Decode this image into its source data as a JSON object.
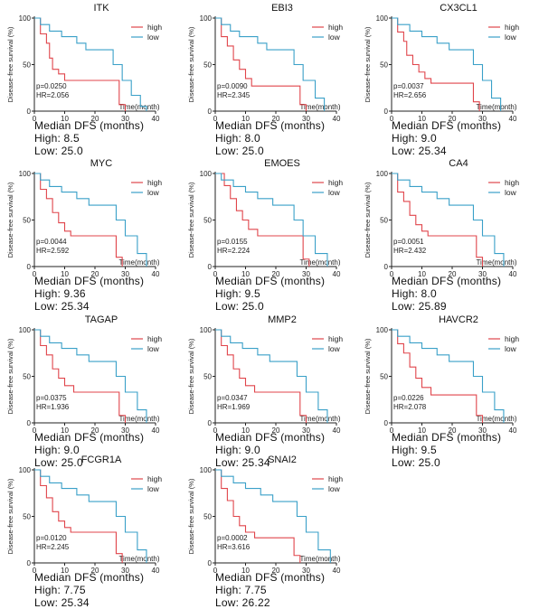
{
  "chart_data": [
    {
      "type": "line",
      "title": "ITK",
      "ylabel": "Disease-free survival (%)",
      "xlabel": "Time(month)",
      "xlim": [
        0,
        40
      ],
      "ylim": [
        0,
        100
      ],
      "x_ticks": [
        0,
        10,
        20,
        30,
        40
      ],
      "y_ticks": [
        0,
        50,
        100
      ],
      "legend_position": "top-right",
      "p_text": "p=0.0250",
      "hr_text": "HR=2.056",
      "series": [
        {
          "name": "high",
          "color": "#e0454b",
          "x": [
            0,
            2,
            4,
            5,
            6,
            8,
            10,
            12,
            26,
            28,
            30
          ],
          "y": [
            100,
            83,
            73,
            57,
            45,
            40,
            33,
            33,
            33,
            7,
            0
          ]
        },
        {
          "name": "low",
          "color": "#3aa0c8",
          "x": [
            0,
            2,
            5,
            9,
            14,
            17,
            24,
            26,
            29,
            32,
            35,
            37
          ],
          "y": [
            100,
            93,
            86,
            80,
            73,
            66,
            66,
            50,
            33,
            17,
            5,
            0
          ]
        }
      ],
      "median": {
        "heading": "Median DFS (months)",
        "high": "High: 8.5",
        "low": "Low: 25.0"
      }
    },
    {
      "type": "line",
      "title": "EBI3",
      "ylabel": "Disease-free survival (%)",
      "xlabel": "Time(month)",
      "xlim": [
        0,
        40
      ],
      "ylim": [
        0,
        100
      ],
      "x_ticks": [
        0,
        10,
        20,
        30,
        40
      ],
      "y_ticks": [
        0,
        50,
        100
      ],
      "legend_position": "top-right",
      "p_text": "p=0.0090",
      "hr_text": "HR=2.345",
      "series": [
        {
          "name": "high",
          "color": "#e0454b",
          "x": [
            0,
            2,
            4,
            6,
            8,
            10,
            12,
            26,
            28,
            30
          ],
          "y": [
            100,
            80,
            70,
            55,
            45,
            35,
            27,
            27,
            7,
            0
          ]
        },
        {
          "name": "low",
          "color": "#3aa0c8",
          "x": [
            0,
            2,
            5,
            8,
            14,
            17,
            24,
            26,
            29,
            33,
            36
          ],
          "y": [
            100,
            93,
            86,
            80,
            73,
            66,
            66,
            50,
            33,
            14,
            0
          ]
        }
      ],
      "median": {
        "heading": "Median DFS (months)",
        "high": "High: 8.0",
        "low": "Low: 25.0"
      }
    },
    {
      "type": "line",
      "title": "CX3CL1",
      "ylabel": "Disease-free survival (%)",
      "xlabel": "Time(month)",
      "xlim": [
        0,
        40
      ],
      "ylim": [
        0,
        100
      ],
      "x_ticks": [
        0,
        10,
        20,
        30,
        40
      ],
      "y_ticks": [
        0,
        50,
        100
      ],
      "legend_position": "top-right",
      "p_text": "p=0.0037",
      "hr_text": "HR=2.656",
      "series": [
        {
          "name": "high",
          "color": "#e0454b",
          "x": [
            0,
            2,
            4,
            5,
            7,
            9,
            11,
            13,
            25,
            27,
            29
          ],
          "y": [
            100,
            85,
            75,
            60,
            50,
            42,
            35,
            30,
            30,
            10,
            0
          ]
        },
        {
          "name": "low",
          "color": "#3aa0c8",
          "x": [
            0,
            2,
            6,
            10,
            15,
            19,
            24,
            27,
            30,
            33,
            36
          ],
          "y": [
            100,
            93,
            86,
            80,
            73,
            66,
            66,
            50,
            33,
            14,
            0
          ]
        }
      ],
      "median": {
        "heading": "Median DFS (months)",
        "high": "High: 9.0",
        "low": "Low: 25.34"
      }
    },
    {
      "type": "line",
      "title": "MYC",
      "ylabel": "Disease-free survival (%)",
      "xlabel": "Time(month)",
      "xlim": [
        0,
        40
      ],
      "ylim": [
        0,
        100
      ],
      "x_ticks": [
        0,
        10,
        20,
        30,
        40
      ],
      "y_ticks": [
        0,
        50,
        100
      ],
      "legend_position": "top-right",
      "p_text": "p=0.0044",
      "hr_text": "HR=2.592",
      "series": [
        {
          "name": "high",
          "color": "#e0454b",
          "x": [
            0,
            2,
            4,
            6,
            8,
            10,
            12,
            25,
            27,
            29
          ],
          "y": [
            100,
            83,
            73,
            58,
            47,
            38,
            33,
            33,
            10,
            0
          ]
        },
        {
          "name": "low",
          "color": "#3aa0c8",
          "x": [
            0,
            2,
            5,
            9,
            14,
            18,
            24,
            27,
            30,
            34,
            37
          ],
          "y": [
            100,
            93,
            86,
            80,
            73,
            66,
            66,
            50,
            33,
            14,
            0
          ]
        }
      ],
      "median": {
        "heading": "Median DFS (months)",
        "high": "High: 9.36",
        "low": "Low: 25.34"
      }
    },
    {
      "type": "line",
      "title": "EMOES",
      "ylabel": "Disease-free survival (%)",
      "xlabel": "Time(month)",
      "xlim": [
        0,
        40
      ],
      "ylim": [
        0,
        100
      ],
      "x_ticks": [
        0,
        10,
        20,
        30,
        40
      ],
      "y_ticks": [
        0,
        50,
        100
      ],
      "legend_position": "top-right",
      "p_text": "p=0.0155",
      "hr_text": "HR=2.224",
      "series": [
        {
          "name": "high",
          "color": "#e0454b",
          "x": [
            0,
            3,
            5,
            7,
            9,
            11,
            14,
            26,
            29,
            31
          ],
          "y": [
            100,
            87,
            73,
            60,
            50,
            40,
            33,
            33,
            8,
            0
          ]
        },
        {
          "name": "low",
          "color": "#3aa0c8",
          "x": [
            0,
            2,
            6,
            10,
            14,
            19,
            24,
            26,
            29,
            33,
            37
          ],
          "y": [
            100,
            93,
            86,
            80,
            73,
            66,
            66,
            50,
            33,
            14,
            0
          ]
        }
      ],
      "median": {
        "heading": "Median DFS (months)",
        "high": "High: 9.5",
        "low": "Low: 25.0"
      }
    },
    {
      "type": "line",
      "title": "CA4",
      "ylabel": "Disease-free survival (%)",
      "xlabel": "Time(month)",
      "xlim": [
        0,
        40
      ],
      "ylim": [
        0,
        100
      ],
      "x_ticks": [
        0,
        10,
        20,
        30,
        40
      ],
      "y_ticks": [
        0,
        50,
        100
      ],
      "legend_position": "top-right",
      "p_text": "p=0.0051",
      "hr_text": "HR=2.432",
      "series": [
        {
          "name": "high",
          "color": "#e0454b",
          "x": [
            0,
            2,
            4,
            6,
            8,
            10,
            12,
            26,
            28,
            30
          ],
          "y": [
            100,
            80,
            70,
            55,
            45,
            38,
            33,
            33,
            10,
            0
          ]
        },
        {
          "name": "low",
          "color": "#3aa0c8",
          "x": [
            0,
            2,
            6,
            10,
            15,
            19,
            24,
            27,
            30,
            34,
            37
          ],
          "y": [
            100,
            93,
            86,
            80,
            73,
            66,
            66,
            50,
            33,
            14,
            0
          ]
        }
      ],
      "median": {
        "heading": "Median DFS (months)",
        "high": "High: 8.0",
        "low": "Low: 25.89"
      }
    },
    {
      "type": "line",
      "title": "TAGAP",
      "ylabel": "Disease-free survival (%)",
      "xlabel": "Time(month)",
      "xlim": [
        0,
        40
      ],
      "ylim": [
        0,
        100
      ],
      "x_ticks": [
        0,
        10,
        20,
        30,
        40
      ],
      "y_ticks": [
        0,
        50,
        100
      ],
      "legend_position": "top-right",
      "p_text": "p=0.0375",
      "hr_text": "HR=1.936",
      "series": [
        {
          "name": "high",
          "color": "#e0454b",
          "x": [
            0,
            2,
            4,
            6,
            8,
            10,
            13,
            26,
            28,
            30
          ],
          "y": [
            100,
            83,
            73,
            58,
            48,
            40,
            33,
            33,
            8,
            0
          ]
        },
        {
          "name": "low",
          "color": "#3aa0c8",
          "x": [
            0,
            2,
            5,
            9,
            14,
            18,
            24,
            27,
            30,
            34,
            37
          ],
          "y": [
            100,
            93,
            86,
            80,
            73,
            66,
            66,
            50,
            33,
            14,
            0
          ]
        }
      ],
      "median": {
        "heading": "Median DFS (months)",
        "high": "High: 9.0",
        "low": "Low: 25.0"
      }
    },
    {
      "type": "line",
      "title": "MMP2",
      "ylabel": "Disease-free survival (%)",
      "xlabel": "Time(month)",
      "xlim": [
        0,
        40
      ],
      "ylim": [
        0,
        100
      ],
      "x_ticks": [
        0,
        10,
        20,
        30,
        40
      ],
      "y_ticks": [
        0,
        50,
        100
      ],
      "legend_position": "top-right",
      "p_text": "p=0.0347",
      "hr_text": "HR=1.969",
      "series": [
        {
          "name": "high",
          "color": "#e0454b",
          "x": [
            0,
            2,
            4,
            6,
            8,
            10,
            13,
            26,
            28,
            30
          ],
          "y": [
            100,
            83,
            73,
            58,
            48,
            40,
            33,
            33,
            8,
            0
          ]
        },
        {
          "name": "low",
          "color": "#3aa0c8",
          "x": [
            0,
            2,
            5,
            9,
            14,
            18,
            24,
            27,
            30,
            34,
            37
          ],
          "y": [
            100,
            93,
            86,
            80,
            73,
            66,
            66,
            50,
            33,
            14,
            0
          ]
        }
      ],
      "median": {
        "heading": "Median DFS (months)",
        "high": "High: 9.0",
        "low": "Low: 25.34"
      }
    },
    {
      "type": "line",
      "title": "HAVCR2",
      "ylabel": "Disease-free survival (%)",
      "xlabel": "Time(month)",
      "xlim": [
        0,
        40
      ],
      "ylim": [
        0,
        100
      ],
      "x_ticks": [
        0,
        10,
        20,
        30,
        40
      ],
      "y_ticks": [
        0,
        50,
        100
      ],
      "legend_position": "top-right",
      "p_text": "p=0.0226",
      "hr_text": "HR=2.078",
      "series": [
        {
          "name": "high",
          "color": "#e0454b",
          "x": [
            0,
            2,
            4,
            6,
            8,
            10,
            13,
            26,
            28,
            30
          ],
          "y": [
            100,
            85,
            75,
            60,
            48,
            38,
            30,
            30,
            8,
            0
          ]
        },
        {
          "name": "low",
          "color": "#3aa0c8",
          "x": [
            0,
            2,
            6,
            10,
            15,
            19,
            24,
            27,
            30,
            34,
            37
          ],
          "y": [
            100,
            93,
            86,
            80,
            73,
            66,
            66,
            50,
            33,
            14,
            0
          ]
        }
      ],
      "median": {
        "heading": "Median DFS (months)",
        "high": "High: 9.5",
        "low": "Low: 25.0"
      }
    },
    {
      "type": "line",
      "title": "FCGR1A",
      "ylabel": "Disease-free survival (%)",
      "xlabel": "Time(month)",
      "xlim": [
        0,
        40
      ],
      "ylim": [
        0,
        100
      ],
      "x_ticks": [
        0,
        10,
        20,
        30,
        40
      ],
      "y_ticks": [
        0,
        50,
        100
      ],
      "legend_position": "top-right",
      "p_text": "p=0.0120",
      "hr_text": "HR=2.245",
      "series": [
        {
          "name": "high",
          "color": "#e0454b",
          "x": [
            0,
            2,
            4,
            6,
            8,
            10,
            12,
            25,
            27,
            29
          ],
          "y": [
            100,
            83,
            70,
            55,
            45,
            38,
            33,
            33,
            10,
            0
          ]
        },
        {
          "name": "low",
          "color": "#3aa0c8",
          "x": [
            0,
            2,
            5,
            9,
            14,
            18,
            24,
            27,
            30,
            34,
            37
          ],
          "y": [
            100,
            93,
            86,
            80,
            73,
            66,
            66,
            50,
            33,
            14,
            0
          ]
        }
      ],
      "median": {
        "heading": "Median DFS (months)",
        "high": "High: 7.75",
        "low": "Low: 25.34"
      }
    },
    {
      "type": "line",
      "title": "SNAI2",
      "ylabel": "Disease-free survival (%)",
      "xlabel": "Time(month)",
      "xlim": [
        0,
        40
      ],
      "ylim": [
        0,
        100
      ],
      "x_ticks": [
        0,
        10,
        20,
        30,
        40
      ],
      "y_ticks": [
        0,
        50,
        100
      ],
      "legend_position": "top-right",
      "p_text": "p=0.0002",
      "hr_text": "HR=3.616",
      "series": [
        {
          "name": "high",
          "color": "#e0454b",
          "x": [
            0,
            2,
            4,
            6,
            8,
            10,
            13,
            24,
            26,
            28
          ],
          "y": [
            100,
            80,
            67,
            50,
            40,
            33,
            27,
            27,
            8,
            0
          ]
        },
        {
          "name": "low",
          "color": "#3aa0c8",
          "x": [
            0,
            2,
            6,
            10,
            15,
            19,
            24,
            27,
            30,
            34,
            38
          ],
          "y": [
            100,
            93,
            86,
            80,
            73,
            66,
            66,
            50,
            33,
            14,
            0
          ]
        }
      ],
      "median": {
        "heading": "Median DFS (months)",
        "high": "High: 7.75",
        "low": "Low: 26.22"
      }
    }
  ]
}
